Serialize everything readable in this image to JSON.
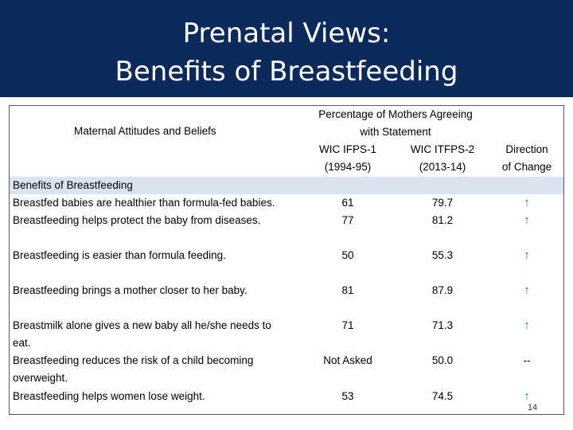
{
  "slide": {
    "title_line1": "Prenatal Views:",
    "title_line2": "Benefits of Breastfeeding",
    "page_number": "14"
  },
  "table": {
    "header": {
      "attitudes": "Maternal Attitudes and Beliefs",
      "group_line1": "Percentage of Mothers Agreeing",
      "group_line2": "with Statement",
      "col1_line1": "WIC IFPS-1",
      "col1_line2": "(1994-95)",
      "col2_line1": "WIC ITFPS-2",
      "col2_line2": "(2013-14)",
      "col3_line1": "Direction",
      "col3_line2": "of Change"
    },
    "section": "Benefits of Breastfeeding",
    "rows": [
      {
        "label_line1": "Breastfed babies are healthier than formula-fed babies.",
        "label_line2": "",
        "ifps1": "61",
        "itfps2": "79.7",
        "direction": "↑"
      },
      {
        "label_line1": "Breastfeeding helps protect the baby from diseases.",
        "label_line2": "",
        "ifps1": "77",
        "itfps2": "81.2",
        "direction": "↑"
      },
      {
        "label_line1": "Breastfeeding is easier than formula feeding.",
        "label_line2": "",
        "ifps1": "50",
        "itfps2": "55.3",
        "direction": "↑"
      },
      {
        "label_line1": "Breastfeeding brings a mother closer to her baby.",
        "label_line2": "",
        "ifps1": "81",
        "itfps2": "87.9",
        "direction": "↑"
      },
      {
        "label_line1": "Breastmilk alone gives a new baby all he/she needs to",
        "label_line2": "eat.",
        "ifps1": "71",
        "itfps2": "71.3",
        "direction": "↑"
      },
      {
        "label_line1": "Breastfeeding reduces the risk of a child becoming",
        "label_line2": "overweight.",
        "ifps1": "Not Asked",
        "itfps2": "50.0",
        "direction": "--"
      },
      {
        "label_line1": "Breastfeeding helps women lose weight.",
        "label_line2": "",
        "ifps1": "53",
        "itfps2": "74.5",
        "direction": "↑"
      }
    ]
  },
  "colors": {
    "title_band": "#0b2a5c",
    "section_band": "#dce3f0",
    "arrow_up": "#1a8a4a"
  }
}
